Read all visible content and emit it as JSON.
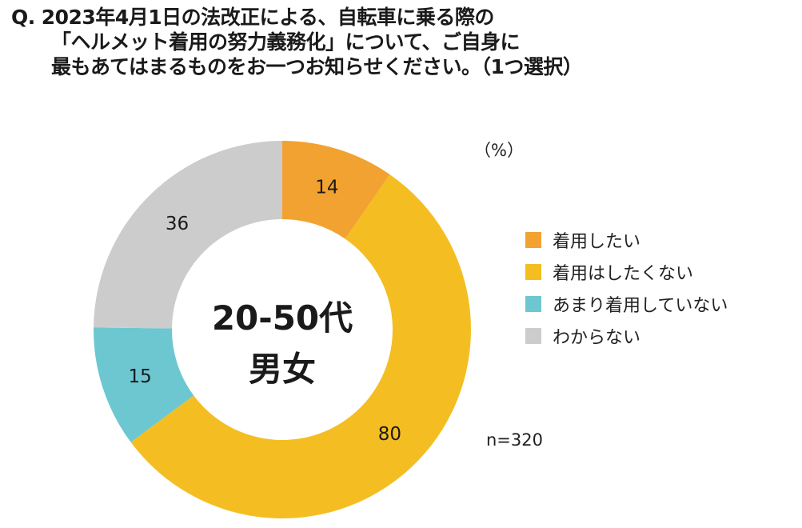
{
  "question": {
    "prefix": "Q.",
    "line1": "2023年4月1日の法改正による、自転車に乗る際の",
    "line2": "「ヘルメット着用の努力義務化」について、ご自身に",
    "line3": "最もあてはまるものをお一つお知らせください。（1つ選択）"
  },
  "chart_data": {
    "type": "pie",
    "style": "donut",
    "unit": "（%）",
    "center_label": [
      "20-50代",
      "男女"
    ],
    "n": "n=320",
    "legend_position": "right",
    "slices": [
      {
        "label": "着用したい",
        "value": 14,
        "color": "#F2A230"
      },
      {
        "label": "着用はしたくない",
        "value": 80,
        "color": "#F4BE22"
      },
      {
        "label": "あまり着用していない",
        "value": 15,
        "color": "#6CC7D1"
      },
      {
        "label": "わからない",
        "value": 36,
        "color": "#CCCCCC"
      }
    ]
  }
}
